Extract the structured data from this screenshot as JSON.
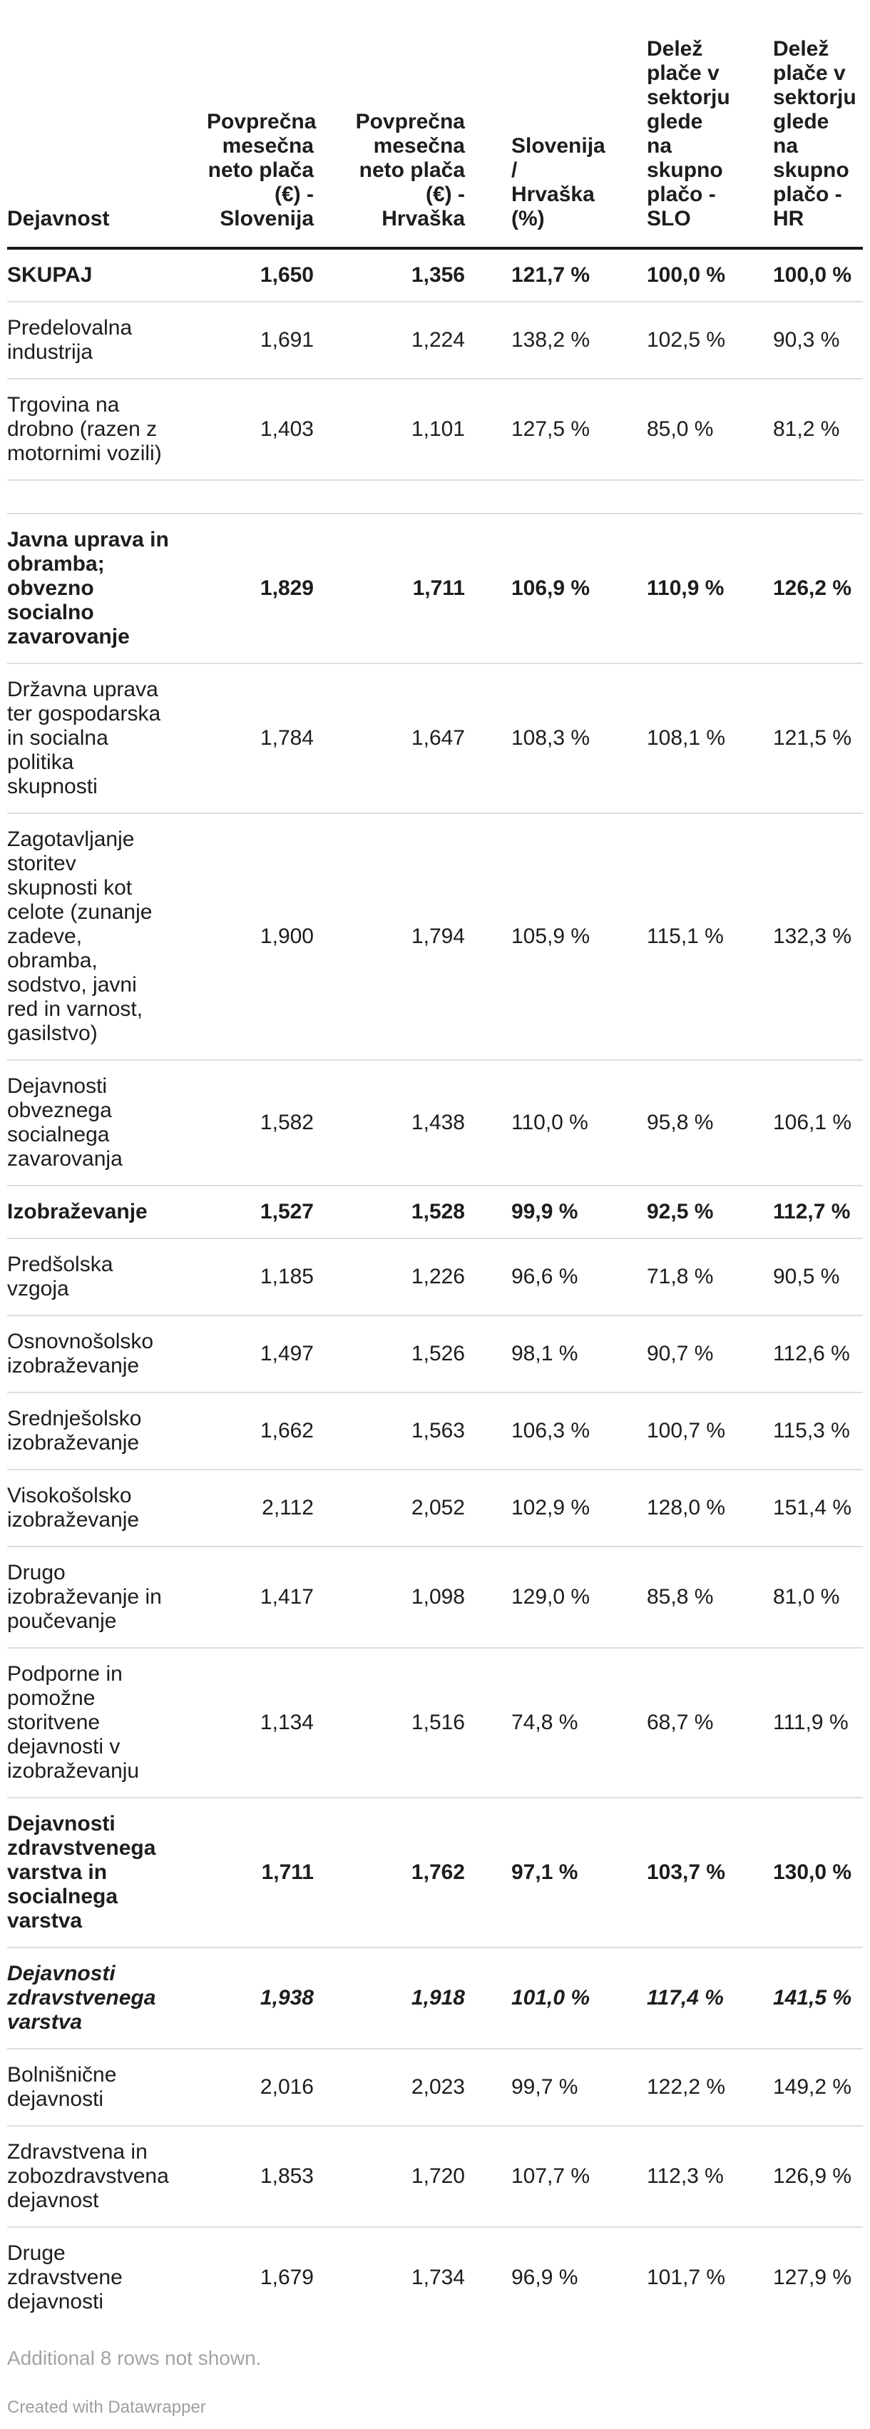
{
  "chart_data": {
    "type": "table",
    "columns": [
      "Dejavnost",
      "Povprečna\nmesečna\nneto plača\n(€) -\nSlovenija",
      "Povprečna\nmesečna\nneto plača\n(€) -\nHrvaška",
      "Slovenija\n/\nHrvaška\n(%)",
      "Delež\nplače v\nsektorju\nglede\nna\nskupno\nplačo -\nSLO",
      "Delež\nplače v\nsektorju\nglede\nna\nskupno\nplačo -\nHR"
    ],
    "rows": [
      {
        "style": "bold",
        "cells": [
          "SKUPAJ",
          "1,650",
          "1,356",
          "121,7 %",
          "100,0 %",
          "100,0 %"
        ]
      },
      {
        "style": "regular",
        "cells": [
          "Predelovalna\nindustrija",
          "1,691",
          "1,224",
          "138,2 %",
          "102,5 %",
          "90,3 %"
        ]
      },
      {
        "style": "regular",
        "cells": [
          "Trgovina na\ndrobno (razen z\nmotornimi vozili)",
          "1,403",
          "1,101",
          "127,5 %",
          "85,0 %",
          "81,2 %"
        ]
      },
      {
        "style": "empty",
        "cells": [
          "",
          "",
          "",
          "",
          "",
          ""
        ]
      },
      {
        "style": "bold",
        "cells": [
          "Javna uprava in\nobramba;\nobvezno\nsocialno\nzavarovanje",
          "1,829",
          "1,711",
          "106,9 %",
          "110,9 %",
          "126,2 %"
        ]
      },
      {
        "style": "regular",
        "cells": [
          "Državna uprava\nter gospodarska\nin socialna\npolitika\nskupnosti",
          "1,784",
          "1,647",
          "108,3 %",
          "108,1 %",
          "121,5 %"
        ]
      },
      {
        "style": "regular",
        "cells": [
          "Zagotavljanje\nstoritev\nskupnosti kot\ncelote (zunanje\nzadeve,\nobramba,\nsodstvo, javni\nred in varnost,\ngasilstvo)",
          "1,900",
          "1,794",
          "105,9 %",
          "115,1 %",
          "132,3 %"
        ]
      },
      {
        "style": "regular",
        "cells": [
          "Dejavnosti\nobveznega\nsocialnega\nzavarovanja",
          "1,582",
          "1,438",
          "110,0 %",
          "95,8 %",
          "106,1 %"
        ]
      },
      {
        "style": "bold",
        "cells": [
          "Izobraževanje",
          "1,527",
          "1,528",
          "99,9 %",
          "92,5 %",
          "112,7 %"
        ]
      },
      {
        "style": "regular",
        "cells": [
          "Predšolska\nvzgoja",
          "1,185",
          "1,226",
          "96,6 %",
          "71,8 %",
          "90,5 %"
        ]
      },
      {
        "style": "regular",
        "cells": [
          "Osnovnošolsko\nizobraževanje",
          "1,497",
          "1,526",
          "98,1 %",
          "90,7 %",
          "112,6 %"
        ]
      },
      {
        "style": "regular",
        "cells": [
          "Srednješolsko\nizobraževanje",
          "1,662",
          "1,563",
          "106,3 %",
          "100,7 %",
          "115,3 %"
        ]
      },
      {
        "style": "regular",
        "cells": [
          "Visokošolsko\nizobraževanje",
          "2,112",
          "2,052",
          "102,9 %",
          "128,0 %",
          "151,4 %"
        ]
      },
      {
        "style": "regular",
        "cells": [
          "Drugo\nizobraževanje in\npoučevanje",
          "1,417",
          "1,098",
          "129,0 %",
          "85,8 %",
          "81,0 %"
        ]
      },
      {
        "style": "regular",
        "cells": [
          "Podporne in\npomožne\nstoritvene\ndejavnosti v\nizobraževanju",
          "1,134",
          "1,516",
          "74,8 %",
          "68,7 %",
          "111,9 %"
        ]
      },
      {
        "style": "bold",
        "cells": [
          "Dejavnosti\nzdravstvenega\nvarstva in\nsocialnega\nvarstva",
          "1,711",
          "1,762",
          "97,1 %",
          "103,7 %",
          "130,0 %"
        ]
      },
      {
        "style": "bold-italic",
        "cells": [
          "Dejavnosti\nzdravstvenega\nvarstva",
          "1,938",
          "1,918",
          "101,0 %",
          "117,4 %",
          "141,5 %"
        ]
      },
      {
        "style": "regular",
        "cells": [
          "Bolnišnične\ndejavnosti",
          "2,016",
          "2,023",
          "99,7 %",
          "122,2 %",
          "149,2 %"
        ]
      },
      {
        "style": "regular",
        "cells": [
          "Zdravstvena in\nzobozdravstvena\ndejavnost",
          "1,853",
          "1,720",
          "107,7 %",
          "112,3 %",
          "126,9 %"
        ]
      },
      {
        "style": "regular",
        "cells": [
          "Druge\nzdravstvene\ndejavnosti",
          "1,679",
          "1,734",
          "96,9 %",
          "101,7 %",
          "127,9 %"
        ]
      }
    ],
    "layout": {
      "grid": "row-dividers",
      "header_rule": true,
      "legend_position": "none"
    }
  },
  "footer_note": "Additional 8 rows not shown.",
  "credit": "Created with Datawrapper",
  "colors": {
    "text": "#1d1d1d",
    "divider": "#dedede",
    "header_rule": "#1a1a1a",
    "muted": "#a3a3a3",
    "credit": "#9e9e9e",
    "background": "#ffffff"
  }
}
